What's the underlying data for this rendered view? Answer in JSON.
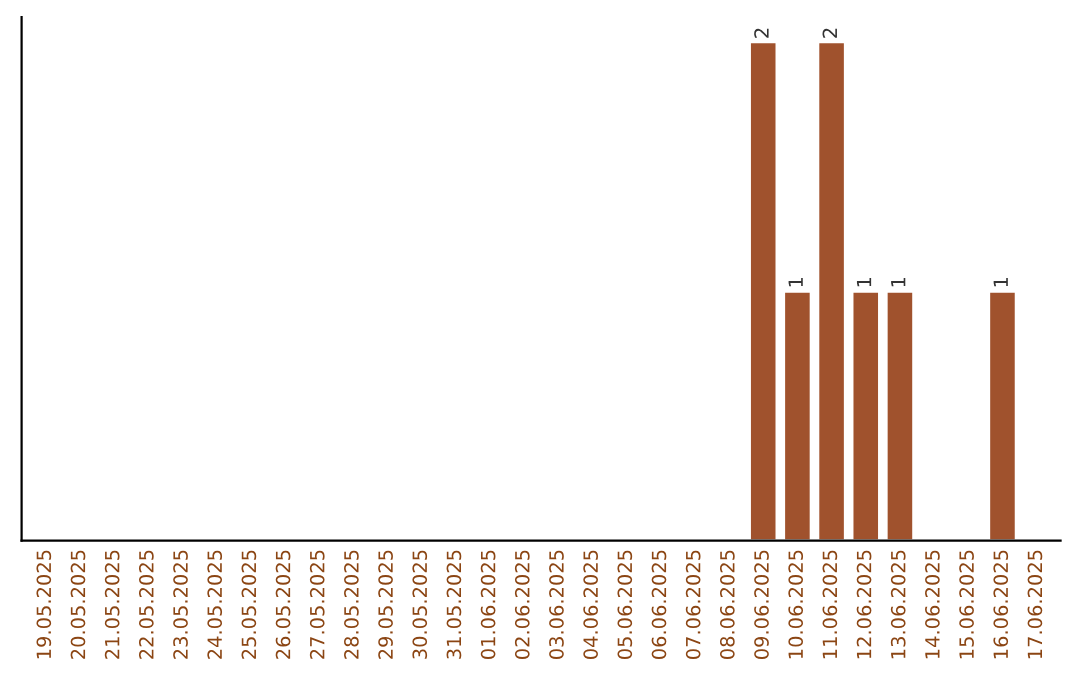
{
  "chart_data": {
    "type": "bar",
    "categories": [
      "19.05.2025",
      "20.05.2025",
      "21.05.2025",
      "22.05.2025",
      "23.05.2025",
      "24.05.2025",
      "25.05.2025",
      "26.05.2025",
      "27.05.2025",
      "28.05.2025",
      "29.05.2025",
      "30.05.2025",
      "31.05.2025",
      "01.06.2025",
      "02.06.2025",
      "03.06.2025",
      "04.06.2025",
      "05.06.2025",
      "06.06.2025",
      "07.06.2025",
      "08.06.2025",
      "09.06.2025",
      "10.06.2025",
      "11.06.2025",
      "12.06.2025",
      "13.06.2025",
      "14.06.2025",
      "15.06.2025",
      "16.06.2025",
      "17.06.2025"
    ],
    "values": [
      null,
      null,
      null,
      null,
      null,
      null,
      null,
      null,
      null,
      null,
      null,
      null,
      null,
      null,
      null,
      null,
      null,
      null,
      null,
      null,
      null,
      2,
      1,
      2,
      1,
      1,
      null,
      null,
      1,
      null
    ],
    "data_labels": true,
    "color": "#a0522d",
    "tick_labels": "x",
    "grid": false
  }
}
